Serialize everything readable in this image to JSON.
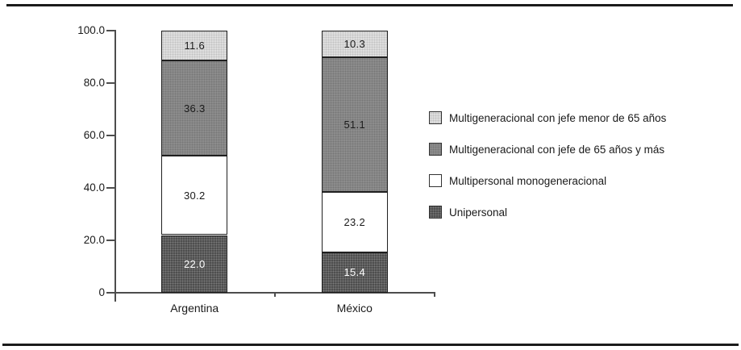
{
  "figure": {
    "background": "#FFFFFF",
    "rule_color": "#1B1B1B",
    "axis_color": "#4D4D4D",
    "text_color": "#1A1A1A"
  },
  "chart_data": {
    "type": "stacked-bar",
    "title": "",
    "xlabel": "",
    "ylabel": "",
    "ylim": [
      0,
      100
    ],
    "grid": false,
    "legend_position": "right",
    "categories": [
      "Argentina",
      "México"
    ],
    "series": [
      {
        "name": "Unipersonal",
        "values": [
          22.0,
          15.4
        ],
        "labels": [
          "22.0",
          "15.4"
        ],
        "color": "#4E4E4E",
        "dot_color": "rgba(255,255,255,0.25)",
        "label_color": "#FFFFFF"
      },
      {
        "name": "Multipersonal monogeneracional",
        "values": [
          30.2,
          23.2
        ],
        "labels": [
          "30.2",
          "23.2"
        ],
        "color": "#FFFFFF",
        "dot_color": "",
        "label_color": "#1A1A1A"
      },
      {
        "name": "Multigeneracional con jefe de 65 años y más",
        "values": [
          36.3,
          51.1
        ],
        "labels": [
          "36.3",
          "51.1"
        ],
        "color": "#8C8C8C",
        "dot_color": "rgba(0,0,0,0.15)",
        "label_color": "#1A1A1A"
      },
      {
        "name": "Multigeneracional con jefe menor de 65 años",
        "values": [
          11.6,
          10.3
        ],
        "labels": [
          "11.6",
          "10.3"
        ],
        "color": "#DEDEDE",
        "dot_color": "rgba(0,0,0,0.13)",
        "label_color": "#1A1A1A"
      }
    ],
    "y_ticks": [
      {
        "label": "100.0",
        "value": 100
      },
      {
        "label": "80.0",
        "value": 80
      },
      {
        "label": "60.0",
        "value": 60
      },
      {
        "label": "40.0",
        "value": 40
      },
      {
        "label": "20.0",
        "value": 20
      },
      {
        "label": "0",
        "value": 0
      }
    ]
  }
}
